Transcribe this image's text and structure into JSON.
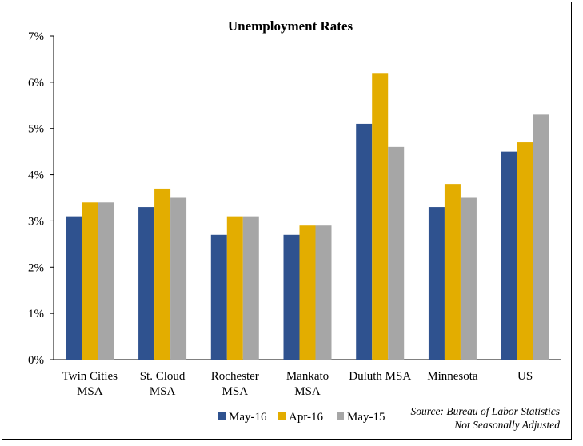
{
  "chart_data": {
    "type": "bar",
    "title": "Unemployment Rates",
    "xlabel": "",
    "ylabel": "",
    "ylim": [
      0,
      7
    ],
    "yticks": [
      0,
      1,
      2,
      3,
      4,
      5,
      6,
      7
    ],
    "ytick_suffix": "%",
    "grid": false,
    "categories": [
      [
        "Twin Cities",
        "MSA"
      ],
      [
        "St. Cloud",
        "MSA"
      ],
      [
        "Rochester",
        "MSA"
      ],
      [
        "Mankato",
        "MSA"
      ],
      [
        "Duluth MSA"
      ],
      [
        "Minnesota"
      ],
      [
        "US"
      ]
    ],
    "series": [
      {
        "name": "May-16",
        "color": "#2f528f",
        "values": [
          3.1,
          3.3,
          2.7,
          2.7,
          5.1,
          3.3,
          4.5
        ]
      },
      {
        "name": "Apr-16",
        "color": "#e3ad00",
        "values": [
          3.4,
          3.7,
          3.1,
          2.9,
          6.2,
          3.8,
          4.7
        ]
      },
      {
        "name": "May-15",
        "color": "#a6a6a6",
        "values": [
          3.4,
          3.5,
          3.1,
          2.9,
          4.6,
          3.5,
          5.3
        ]
      }
    ],
    "legend_position": "bottom",
    "annotations": [
      "Source: Bureau of Labor Statistics",
      "Not Seasonally Adjusted"
    ]
  }
}
